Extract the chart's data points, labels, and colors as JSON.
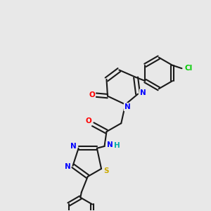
{
  "background_color": "#e8e8e8",
  "bond_color": "#1a1a1a",
  "atom_colors": {
    "N": "#0000ff",
    "O": "#ff0000",
    "S": "#ccaa00",
    "Cl": "#00cc00",
    "H": "#00aaaa",
    "C": "#1a1a1a"
  },
  "figsize": [
    3.0,
    3.0
  ],
  "dpi": 100
}
